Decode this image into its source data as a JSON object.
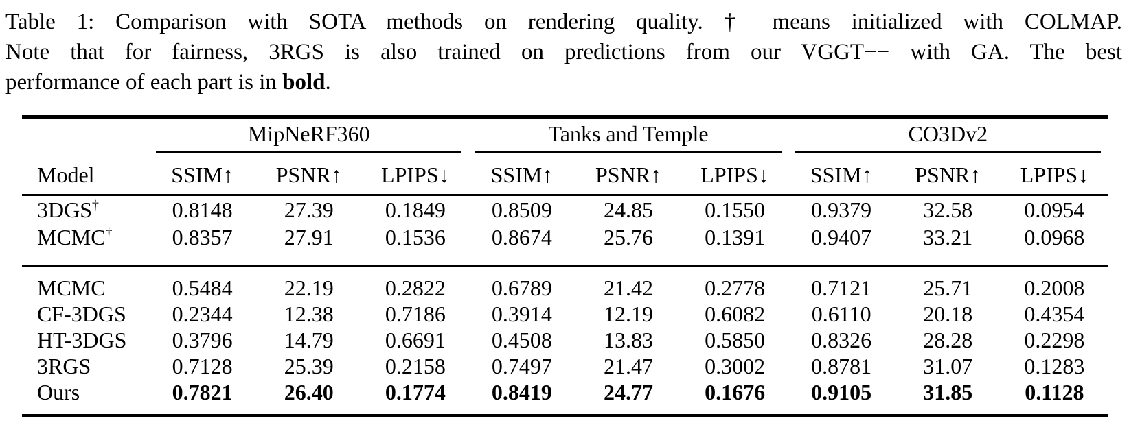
{
  "caption": {
    "line1": "Table 1: Comparison with SOTA methods on rendering quality. † means initialized with COLMAP.",
    "line2": "Note that for fairness, 3RGS is also trained on predictions from our VGGT−− with GA. The best",
    "line3_segments": [
      {
        "text": "performance of each part is in ",
        "bold": false
      },
      {
        "text": "bold",
        "bold": true
      },
      {
        "text": ".",
        "bold": false
      }
    ]
  },
  "table": {
    "model_header": "Model",
    "groups": [
      "MipNeRF360",
      "Tanks and Temple",
      "CO3Dv2"
    ],
    "metrics": [
      "SSIM↑",
      "PSNR↑",
      "LPIPS↓"
    ],
    "sections": [
      {
        "rows": [
          {
            "model": "3DGS",
            "sup": "†",
            "bold_values": false,
            "values": [
              "0.8148",
              "27.39",
              "0.1849",
              "0.8509",
              "24.85",
              "0.1550",
              "0.9379",
              "32.58",
              "0.0954"
            ]
          },
          {
            "model": "MCMC",
            "sup": "†",
            "bold_values": false,
            "values": [
              "0.8357",
              "27.91",
              "0.1536",
              "0.8674",
              "25.76",
              "0.1391",
              "0.9407",
              "33.21",
              "0.0968"
            ]
          }
        ]
      },
      {
        "rows": [
          {
            "model": "MCMC",
            "sup": "",
            "bold_values": false,
            "values": [
              "0.5484",
              "22.19",
              "0.2822",
              "0.6789",
              "21.42",
              "0.2778",
              "0.7121",
              "25.71",
              "0.2008"
            ]
          },
          {
            "model": "CF-3DGS",
            "sup": "",
            "bold_values": false,
            "values": [
              "0.2344",
              "12.38",
              "0.7186",
              "0.3914",
              "12.19",
              "0.6082",
              "0.6110",
              "20.18",
              "0.4354"
            ]
          },
          {
            "model": "HT-3DGS",
            "sup": "",
            "bold_values": false,
            "values": [
              "0.3796",
              "14.79",
              "0.6691",
              "0.4508",
              "13.83",
              "0.5850",
              "0.8326",
              "28.28",
              "0.2298"
            ]
          },
          {
            "model": "3RGS",
            "sup": "",
            "bold_values": false,
            "values": [
              "0.7128",
              "25.39",
              "0.2158",
              "0.7497",
              "21.47",
              "0.3002",
              "0.8781",
              "31.07",
              "0.1283"
            ]
          },
          {
            "model": "Ours",
            "sup": "",
            "bold_values": true,
            "values": [
              "0.7821",
              "26.40",
              "0.1774",
              "0.8419",
              "24.77",
              "0.1676",
              "0.9105",
              "31.85",
              "0.1128"
            ]
          }
        ]
      }
    ]
  },
  "colors": {
    "text": "#000000",
    "background": "#ffffff",
    "rule": "#000000"
  }
}
